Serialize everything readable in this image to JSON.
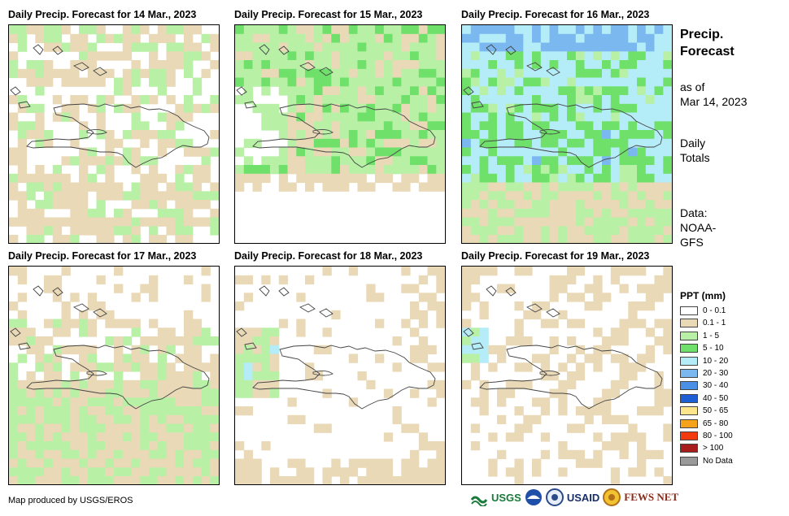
{
  "panels": [
    {
      "title": "Daily Precip. Forecast for 14 Mar., 2023",
      "predominant_category": "0.1 - 1"
    },
    {
      "title": "Daily Precip. Forecast for 15 Mar., 2023",
      "predominant_category": "1 - 5"
    },
    {
      "title": "Daily Precip. Forecast for 16 Mar., 2023",
      "predominant_category": "10 - 20"
    },
    {
      "title": "Daily Precip. Forecast for 17 Mar., 2023",
      "predominant_category": "0.1 - 1"
    },
    {
      "title": "Daily Precip. Forecast for 18 Mar., 2023",
      "predominant_category": "0 - 0.1"
    },
    {
      "title": "Daily Precip. Forecast for 19 Mar., 2023",
      "predominant_category": "0 - 0.1"
    }
  ],
  "side": {
    "title_line1": "Precip.",
    "title_line2": "Forecast",
    "asof_line1": "as of",
    "asof_line2": "Mar 14, 2023",
    "totals_line1": "Daily",
    "totals_line2": "Totals",
    "data_line1": "Data:",
    "data_line2": "NOAA-",
    "data_line3": "GFS"
  },
  "legend": {
    "title": "PPT (mm)",
    "items": [
      {
        "label": "0 - 0.1",
        "color": "#ffffff"
      },
      {
        "label": "0.1 - 1",
        "color": "#ead9b7"
      },
      {
        "label": "1 - 5",
        "color": "#b8f0a6"
      },
      {
        "label": "5 - 10",
        "color": "#6fe06a"
      },
      {
        "label": "10 - 20",
        "color": "#b4ecf7"
      },
      {
        "label": "20 - 30",
        "color": "#7bb8f0"
      },
      {
        "label": "30 - 40",
        "color": "#4a8fe6"
      },
      {
        "label": "40 - 50",
        "color": "#1f5fd6"
      },
      {
        "label": "50 - 65",
        "color": "#fde58c"
      },
      {
        "label": "65 - 80",
        "color": "#f7a21b"
      },
      {
        "label": "80 - 100",
        "color": "#f23a0f"
      },
      {
        "label": "> 100",
        "color": "#a81c1c"
      },
      {
        "label": "No Data",
        "color": "#9a9a9a"
      }
    ]
  },
  "footer": {
    "credit": "Map produced by USGS/EROS",
    "logos": [
      "USGS",
      "USAID",
      "FEWS NET"
    ]
  }
}
